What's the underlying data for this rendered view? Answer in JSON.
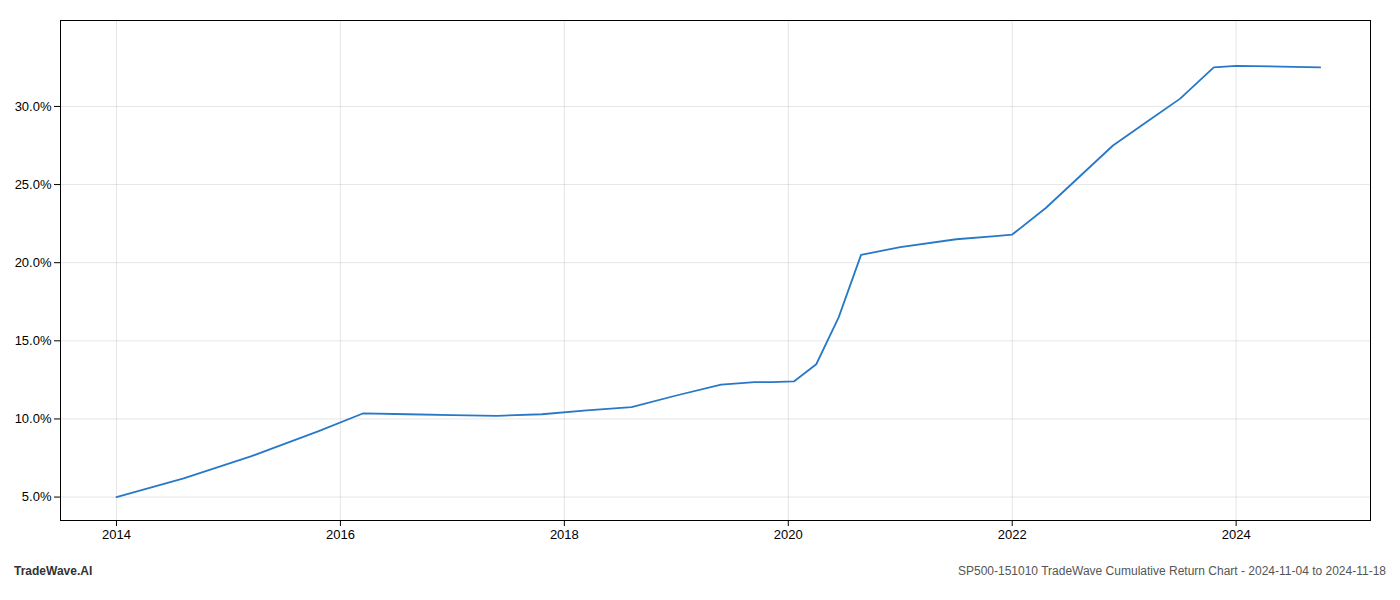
{
  "chart_data": {
    "type": "line",
    "x": [
      2014.0,
      2014.6,
      2015.2,
      2015.8,
      2016.2,
      2016.6,
      2017.0,
      2017.4,
      2017.8,
      2018.2,
      2018.6,
      2019.0,
      2019.4,
      2019.7,
      2019.85,
      2020.05,
      2020.25,
      2020.45,
      2020.65,
      2021.0,
      2021.5,
      2021.85,
      2022.0,
      2022.3,
      2022.6,
      2022.9,
      2023.2,
      2023.5,
      2023.8,
      2024.0,
      2024.4,
      2024.75
    ],
    "values": [
      5.0,
      6.2,
      7.6,
      9.2,
      10.35,
      10.3,
      10.25,
      10.2,
      10.3,
      10.55,
      10.75,
      11.5,
      12.2,
      12.35,
      12.35,
      12.4,
      13.5,
      16.5,
      20.5,
      21.0,
      21.5,
      21.7,
      21.8,
      23.5,
      25.5,
      27.5,
      29.0,
      30.5,
      32.5,
      32.6,
      32.55,
      32.5
    ],
    "color": "#2878c8",
    "xlim": [
      2013.5,
      2025.2
    ],
    "ylim": [
      3.5,
      35.5
    ],
    "xticks": [
      2014,
      2016,
      2018,
      2020,
      2022,
      2024
    ],
    "yticks": [
      {
        "value": 5.0,
        "label": "5.0%"
      },
      {
        "value": 10.0,
        "label": "10.0%"
      },
      {
        "value": 15.0,
        "label": "15.0%"
      },
      {
        "value": 20.0,
        "label": "20.0%"
      },
      {
        "value": 25.0,
        "label": "25.0%"
      },
      {
        "value": 30.0,
        "label": "30.0%"
      }
    ],
    "grid": true,
    "annotations": [
      "TradeWave.AI",
      "SP500-151010 TradeWave Cumulative Return Chart - 2024-11-04 to 2024-11-18"
    ]
  }
}
